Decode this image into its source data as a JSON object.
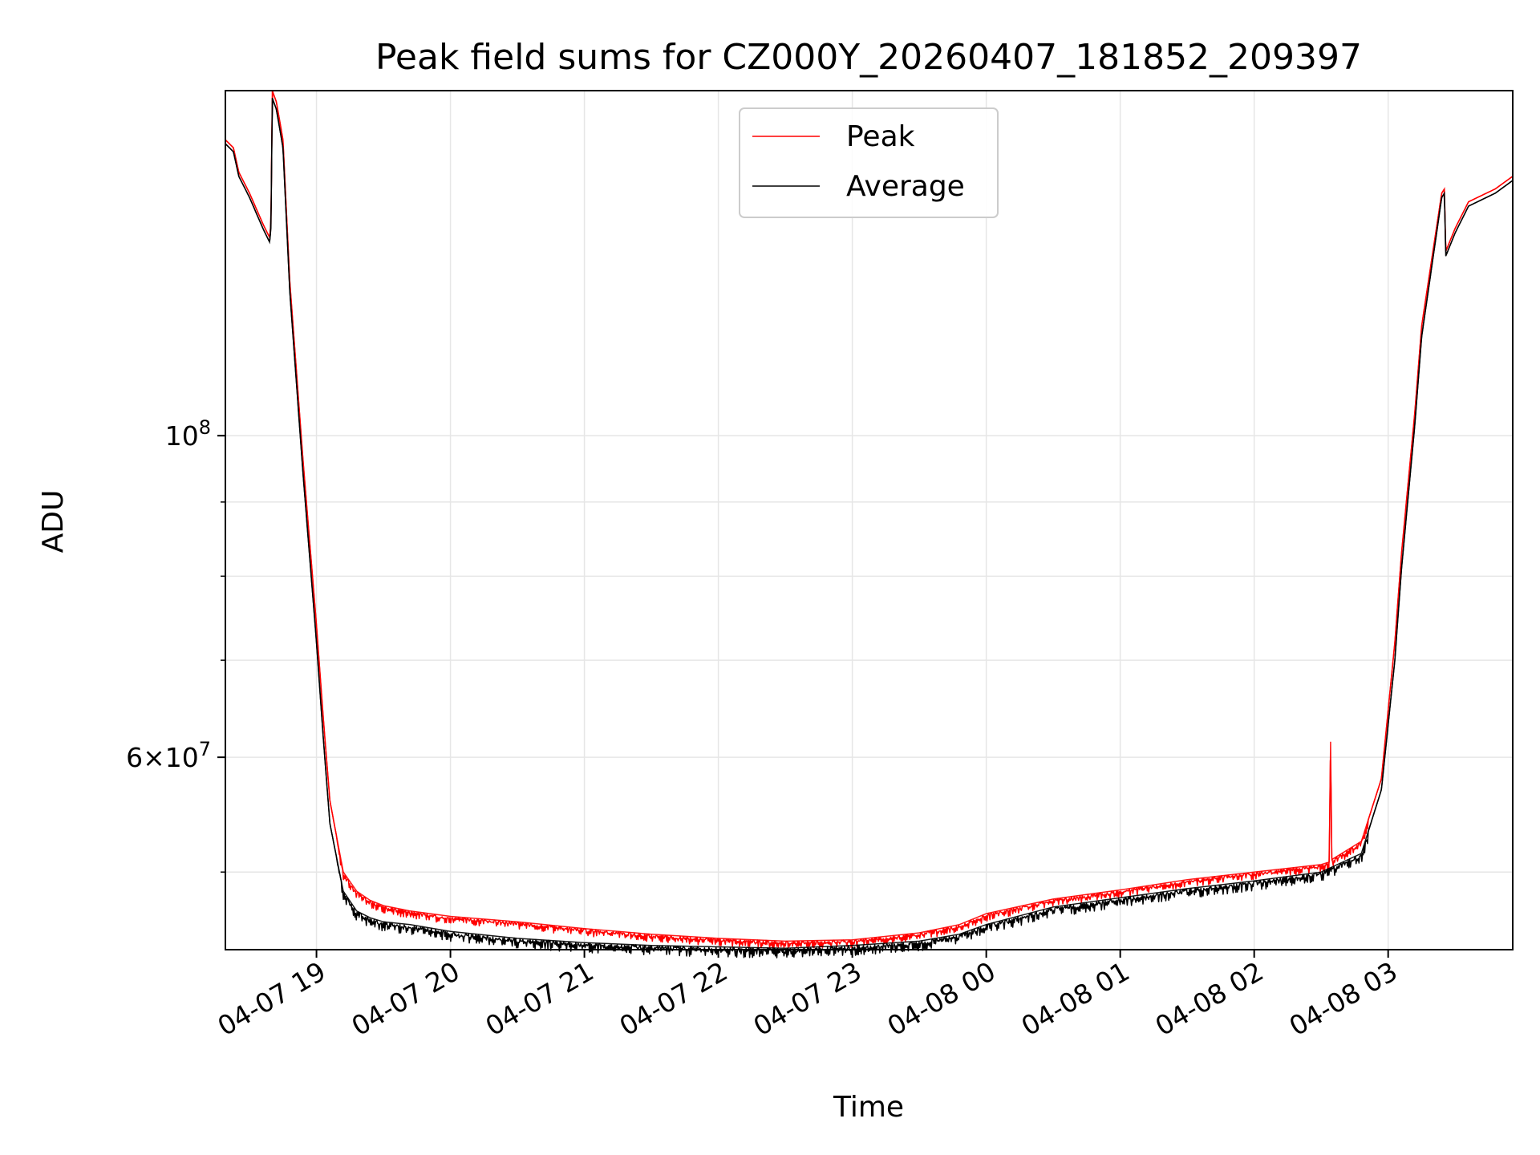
{
  "chart_data": {
    "type": "line",
    "title": "Peak field sums for CZ000Y_20260407_181852_209397",
    "xlabel": "Time",
    "ylabel": "ADU",
    "yscale": "log",
    "ylim": [
      44200000,
      173000000
    ],
    "xlim_hours": [
      -0.68,
      8.93
    ],
    "x_tick_labels": [
      "04-07 19",
      "04-07 20",
      "04-07 21",
      "04-07 22",
      "04-07 23",
      "04-08 00",
      "04-08 01",
      "04-08 02",
      "04-08 03"
    ],
    "y_tick_labels": [
      {
        "value": 100000000,
        "base": "10",
        "exp": "8",
        "mant": ""
      },
      {
        "value": 60000000,
        "base": "10",
        "exp": "7",
        "mant": "6"
      }
    ],
    "y_minor_ticks": [
      50000000,
      70000000,
      80000000,
      90000000
    ],
    "grid": true,
    "legend_position": "upper center",
    "colors": {
      "peak": "#ff0000",
      "average": "#000000",
      "grid": "#e6e6e6"
    },
    "series": [
      {
        "name": "Peak",
        "key": "peak",
        "x_hours": [
          -0.68,
          -0.62,
          -0.58,
          -0.5,
          -0.4,
          -0.35,
          -0.34,
          -0.33,
          -0.3,
          -0.25,
          -0.2,
          -0.1,
          0.0,
          0.05,
          0.1,
          0.2,
          0.3,
          0.4,
          0.5,
          0.7,
          1.0,
          1.5,
          2.0,
          2.5,
          3.0,
          3.5,
          4.0,
          4.5,
          4.8,
          5.0,
          5.5,
          6.0,
          6.5,
          7.0,
          7.5,
          7.56,
          7.57,
          7.58,
          7.8,
          7.95,
          8.05,
          8.1,
          8.2,
          8.25,
          8.4,
          8.42,
          8.43,
          8.5,
          8.6,
          8.8,
          8.93
        ],
        "values": [
          160000000,
          158000000,
          152000000,
          147000000,
          140000000,
          137000000,
          140000000,
          173000000,
          170000000,
          160000000,
          128000000,
          96000000,
          74000000,
          64000000,
          56000000,
          50000000,
          48500000,
          47800000,
          47400000,
          47000000,
          46600000,
          46200000,
          45700000,
          45300000,
          45000000,
          44800000,
          44900000,
          45400000,
          46000000,
          46800000,
          47900000,
          48600000,
          49400000,
          50000000,
          50600000,
          50800000,
          61500000,
          51000000,
          52500000,
          58000000,
          72000000,
          83000000,
          104000000,
          119000000,
          147000000,
          148000000,
          134000000,
          139000000,
          145000000,
          148000000,
          151000000
        ]
      },
      {
        "name": "Average",
        "key": "average",
        "x_hours": [
          -0.68,
          -0.62,
          -0.58,
          -0.5,
          -0.4,
          -0.35,
          -0.34,
          -0.33,
          -0.3,
          -0.25,
          -0.2,
          -0.1,
          0.0,
          0.05,
          0.1,
          0.2,
          0.3,
          0.4,
          0.5,
          0.7,
          1.0,
          1.5,
          2.0,
          2.5,
          3.0,
          3.5,
          4.0,
          4.5,
          4.8,
          5.0,
          5.5,
          6.0,
          6.5,
          7.0,
          7.5,
          7.8,
          7.95,
          8.05,
          8.1,
          8.2,
          8.25,
          8.4,
          8.42,
          8.43,
          8.5,
          8.6,
          8.8,
          8.93
        ],
        "values": [
          159000000,
          157000000,
          151000000,
          146000000,
          139000000,
          136000000,
          139000000,
          171000000,
          168000000,
          158000000,
          126000000,
          94000000,
          72000000,
          62000000,
          54000000,
          48500000,
          47000000,
          46500000,
          46200000,
          46000000,
          45500000,
          45000000,
          44700000,
          44500000,
          44400000,
          44300000,
          44500000,
          44800000,
          45300000,
          46000000,
          47300000,
          48000000,
          48700000,
          49300000,
          50000000,
          51500000,
          57000000,
          70000000,
          81000000,
          102000000,
          117000000,
          146000000,
          147000000,
          133000000,
          138000000,
          144000000,
          147000000,
          150000000
        ]
      }
    ]
  },
  "legend": {
    "peak_label": "Peak",
    "average_label": "Average"
  }
}
